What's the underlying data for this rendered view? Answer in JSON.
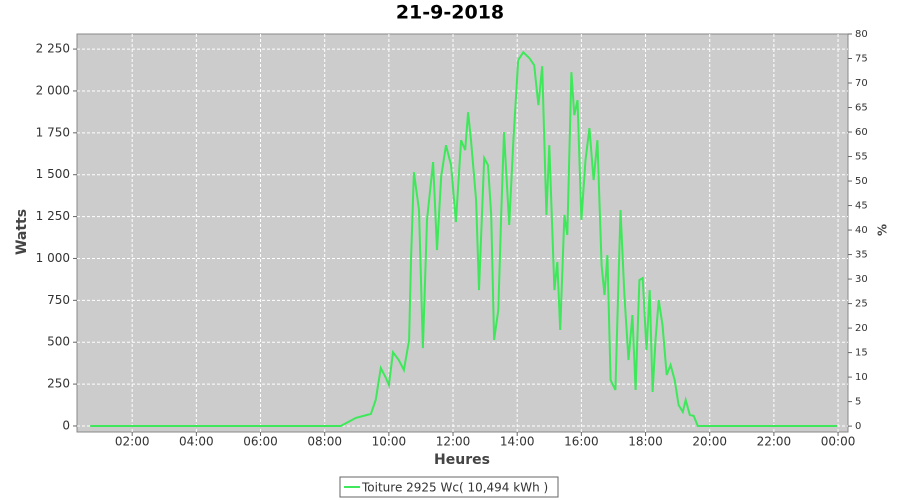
{
  "chart_data": {
    "type": "line",
    "title": "21-9-2018",
    "x_label": "Heures",
    "y_label": "Watts",
    "y2_label": "%",
    "x": [
      0.69,
      8.5,
      8.97,
      9.44,
      9.59,
      9.75,
      9.91,
      10.0,
      10.13,
      10.31,
      10.47,
      10.63,
      10.69,
      10.78,
      10.94,
      11.06,
      11.19,
      11.38,
      11.5,
      11.63,
      11.78,
      11.94,
      12.09,
      12.25,
      12.38,
      12.47,
      12.56,
      12.72,
      12.81,
      12.97,
      13.09,
      13.19,
      13.28,
      13.41,
      13.5,
      13.59,
      13.75,
      13.88,
      14.03,
      14.19,
      14.38,
      14.53,
      14.66,
      14.78,
      14.91,
      15.0,
      15.16,
      15.25,
      15.34,
      15.47,
      15.56,
      15.69,
      15.78,
      15.88,
      16.0,
      16.13,
      16.25,
      16.38,
      16.5,
      16.63,
      16.72,
      16.81,
      16.91,
      17.06,
      17.22,
      17.34,
      17.47,
      17.59,
      17.69,
      17.81,
      17.91,
      18.03,
      18.13,
      18.22,
      18.31,
      18.41,
      18.53,
      18.66,
      18.78,
      18.91,
      19.03,
      19.16,
      19.25,
      19.38,
      19.5,
      19.63,
      23.97
    ],
    "series": [
      {
        "name": "Toiture 2925 Wc( 10,494 kWh )",
        "color": "#3ee85a",
        "values": [
          0,
          0,
          48,
          72,
          155,
          346,
          286,
          245,
          440,
          394,
          334,
          513,
          990,
          1515,
          1290,
          465,
          1230,
          1575,
          1050,
          1490,
          1676,
          1557,
          1217,
          1706,
          1647,
          1873,
          1706,
          1349,
          811,
          1600,
          1557,
          1260,
          513,
          692,
          1260,
          1754,
          1200,
          1706,
          2184,
          2231,
          2196,
          2154,
          1915,
          2148,
          1260,
          1676,
          811,
          978,
          573,
          1260,
          1140,
          2112,
          1855,
          1945,
          1230,
          1587,
          1778,
          1468,
          1706,
          960,
          782,
          1020,
          274,
          215,
          1289,
          782,
          394,
          662,
          215,
          871,
          883,
          453,
          811,
          203,
          513,
          752,
          603,
          304,
          364,
          274,
          125,
          84,
          155,
          66,
          60,
          0,
          0
        ]
      }
    ],
    "xlim": [
      0.28,
      24.31
    ],
    "xticks": [
      {
        "value": 2,
        "label": "02:00"
      },
      {
        "value": 4,
        "label": "04:00"
      },
      {
        "value": 6,
        "label": "06:00"
      },
      {
        "value": 8,
        "label": "08:00"
      },
      {
        "value": 10,
        "label": "10:00"
      },
      {
        "value": 12,
        "label": "12:00"
      },
      {
        "value": 14,
        "label": "14:00"
      },
      {
        "value": 16,
        "label": "16:00"
      },
      {
        "value": 18,
        "label": "18:00"
      },
      {
        "value": 20,
        "label": "20:00"
      },
      {
        "value": 22,
        "label": "22:00"
      },
      {
        "value": 24,
        "label": "00:00"
      }
    ],
    "ylim": [
      -36,
      2340
    ],
    "yticks": [
      0,
      250,
      500,
      750,
      {
        "value": 1000,
        "label": "1 000"
      },
      {
        "value": 1250,
        "label": "1 250"
      },
      {
        "value": 1500,
        "label": "1 500"
      },
      {
        "value": 1750,
        "label": "1 750"
      },
      {
        "value": 2000,
        "label": "2 000"
      },
      {
        "value": 2250,
        "label": "2 250"
      }
    ],
    "y2lim": [
      -1.2,
      80
    ],
    "y2ticks": [
      0,
      5,
      10,
      15,
      20,
      25,
      30,
      35,
      40,
      45,
      50,
      55,
      60,
      65,
      70,
      75,
      80
    ],
    "grid": true
  }
}
